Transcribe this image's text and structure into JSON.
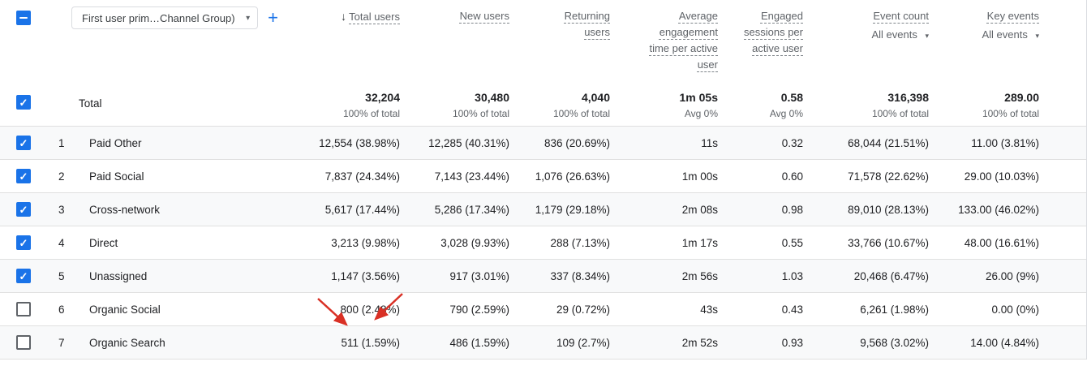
{
  "colors": {
    "accent": "#1a73e8",
    "annotation_arrow": "#d93025"
  },
  "toolbar": {
    "dimension_dropdown_value": "First user prim…Channel Group)",
    "add_button_label": "+"
  },
  "icons": {
    "sort_descending": "↓",
    "caret_down": "▾",
    "check": "✓"
  },
  "columns": [
    {
      "label": "Total users",
      "sorted": true
    },
    {
      "label": "New users"
    },
    {
      "label": "Returning users"
    },
    {
      "label": "Average engagement time per active user"
    },
    {
      "label": "Engaged sessions per active user"
    },
    {
      "label": "Event count",
      "sub": "All events"
    },
    {
      "label": "Key events",
      "sub": "All events"
    }
  ],
  "total": {
    "label": "Total",
    "cells": [
      {
        "main": "32,204",
        "sub": "100% of total"
      },
      {
        "main": "30,480",
        "sub": "100% of total"
      },
      {
        "main": "4,040",
        "sub": "100% of total"
      },
      {
        "main": "1m 05s",
        "sub": "Avg 0%"
      },
      {
        "main": "0.58",
        "sub": "Avg 0%"
      },
      {
        "main": "316,398",
        "sub": "100% of total"
      },
      {
        "main": "289.00",
        "sub": "100% of total"
      }
    ]
  },
  "rows": [
    {
      "num": "1",
      "channel": "Paid Other",
      "checked": true,
      "cells": [
        "12,554 (38.98%)",
        "12,285 (40.31%)",
        "836 (20.69%)",
        "11s",
        "0.32",
        "68,044 (21.51%)",
        "11.00 (3.81%)"
      ]
    },
    {
      "num": "2",
      "channel": "Paid Social",
      "checked": true,
      "cells": [
        "7,837 (24.34%)",
        "7,143 (23.44%)",
        "1,076 (26.63%)",
        "1m 00s",
        "0.60",
        "71,578 (22.62%)",
        "29.00 (10.03%)"
      ]
    },
    {
      "num": "3",
      "channel": "Cross-network",
      "checked": true,
      "cells": [
        "5,617 (17.44%)",
        "5,286 (17.34%)",
        "1,179 (29.18%)",
        "2m 08s",
        "0.98",
        "89,010 (28.13%)",
        "133.00 (46.02%)"
      ]
    },
    {
      "num": "4",
      "channel": "Direct",
      "checked": true,
      "cells": [
        "3,213 (9.98%)",
        "3,028 (9.93%)",
        "288 (7.13%)",
        "1m 17s",
        "0.55",
        "33,766 (10.67%)",
        "48.00 (16.61%)"
      ]
    },
    {
      "num": "5",
      "channel": "Unassigned",
      "checked": true,
      "cells": [
        "1,147 (3.56%)",
        "917 (3.01%)",
        "337 (8.34%)",
        "2m 56s",
        "1.03",
        "20,468 (6.47%)",
        "26.00 (9%)"
      ]
    },
    {
      "num": "6",
      "channel": "Organic Social",
      "checked": false,
      "cells": [
        "800 (2.48%)",
        "790 (2.59%)",
        "29 (0.72%)",
        "43s",
        "0.43",
        "6,261 (1.98%)",
        "0.00 (0%)"
      ]
    },
    {
      "num": "7",
      "channel": "Organic Search",
      "checked": false,
      "cells": [
        "511 (1.59%)",
        "486 (1.59%)",
        "109 (2.7%)",
        "2m 52s",
        "0.93",
        "9,568 (3.02%)",
        "14.00 (4.84%)"
      ]
    }
  ]
}
